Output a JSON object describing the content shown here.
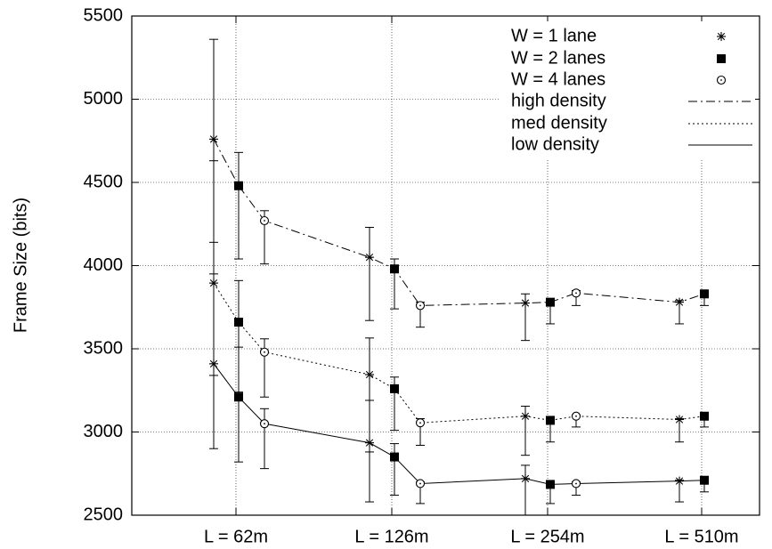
{
  "chart_data": {
    "type": "line",
    "title": "",
    "xlabel": "",
    "ylabel": "Frame Size (bits)",
    "ylim": [
      2500,
      5500
    ],
    "yticks": [
      "2500",
      "3000",
      "3500",
      "4000",
      "4500",
      "5000",
      "5500"
    ],
    "categories": [
      "L = 62m",
      "L = 126m",
      "L = 254m",
      "L = 510m"
    ],
    "grid": true,
    "legend_position": "top-right",
    "marker_legend": [
      {
        "label": "W = 1 lane",
        "marker": "star"
      },
      {
        "label": "W = 2 lanes",
        "marker": "square"
      },
      {
        "label": "W = 4 lanes",
        "marker": "circle"
      }
    ],
    "line_legend": [
      {
        "label": "high density",
        "style": "dash-dot"
      },
      {
        "label": "med density",
        "style": "dotted"
      },
      {
        "label": "low density",
        "style": "solid"
      }
    ],
    "series": [
      {
        "density": "high density",
        "points": [
          {
            "category": 0,
            "lanes": 1,
            "y": 4760,
            "err_low": 4140,
            "err_high": 5360
          },
          {
            "category": 0,
            "lanes": 2,
            "y": 4480,
            "err_low": 4040,
            "err_high": 4680
          },
          {
            "category": 0,
            "lanes": 4,
            "y": 4270,
            "err_low": 4010,
            "err_high": 4330
          },
          {
            "category": 1,
            "lanes": 1,
            "y": 4050,
            "err_low": 3670,
            "err_high": 4230
          },
          {
            "category": 1,
            "lanes": 2,
            "y": 3980,
            "err_low": 3740,
            "err_high": 4040
          },
          {
            "category": 1,
            "lanes": 4,
            "y": 3760,
            "err_low": 3630,
            "err_high": 3780
          },
          {
            "category": 2,
            "lanes": 1,
            "y": 3775,
            "err_low": 3550,
            "err_high": 3830
          },
          {
            "category": 2,
            "lanes": 2,
            "y": 3780,
            "err_low": 3650,
            "err_high": 3790
          },
          {
            "category": 2,
            "lanes": 4,
            "y": 3835,
            "err_low": 3760,
            "err_high": 3850
          },
          {
            "category": 3,
            "lanes": 1,
            "y": 3780,
            "err_low": 3650,
            "err_high": 3790
          },
          {
            "category": 3,
            "lanes": 2,
            "y": 3830,
            "err_low": 3760,
            "err_high": 3850
          }
        ]
      },
      {
        "density": "med density",
        "points": [
          {
            "category": 0,
            "lanes": 1,
            "y": 3895,
            "err_low": 3340,
            "err_high": 4630
          },
          {
            "category": 0,
            "lanes": 2,
            "y": 3660,
            "err_low": 3240,
            "err_high": 3910
          },
          {
            "category": 0,
            "lanes": 4,
            "y": 3480,
            "err_low": 3210,
            "err_high": 3560
          },
          {
            "category": 1,
            "lanes": 1,
            "y": 3345,
            "err_low": 2880,
            "err_high": 3565
          },
          {
            "category": 1,
            "lanes": 2,
            "y": 3260,
            "err_low": 3010,
            "err_high": 3330
          },
          {
            "category": 1,
            "lanes": 4,
            "y": 3055,
            "err_low": 2920,
            "err_high": 3080
          },
          {
            "category": 2,
            "lanes": 1,
            "y": 3095,
            "err_low": 2860,
            "err_high": 3155
          },
          {
            "category": 2,
            "lanes": 2,
            "y": 3070,
            "err_low": 2940,
            "err_high": 3080
          },
          {
            "category": 2,
            "lanes": 4,
            "y": 3095,
            "err_low": 3030,
            "err_high": 3100
          },
          {
            "category": 3,
            "lanes": 1,
            "y": 3075,
            "err_low": 2940,
            "err_high": 3080
          },
          {
            "category": 3,
            "lanes": 2,
            "y": 3095,
            "err_low": 3030,
            "err_high": 3100
          }
        ]
      },
      {
        "density": "low density",
        "points": [
          {
            "category": 0,
            "lanes": 1,
            "y": 3410,
            "err_low": 2900,
            "err_high": 3950
          },
          {
            "category": 0,
            "lanes": 2,
            "y": 3210,
            "err_low": 2820,
            "err_high": 3510
          },
          {
            "category": 0,
            "lanes": 4,
            "y": 3050,
            "err_low": 2780,
            "err_high": 3140
          },
          {
            "category": 1,
            "lanes": 1,
            "y": 2935,
            "err_low": 2580,
            "err_high": 3190
          },
          {
            "category": 1,
            "lanes": 2,
            "y": 2850,
            "err_low": 2620,
            "err_high": 2930
          },
          {
            "category": 1,
            "lanes": 4,
            "y": 2690,
            "err_low": 2570,
            "err_high": 2700
          },
          {
            "category": 2,
            "lanes": 1,
            "y": 2720,
            "err_low": 2500,
            "err_high": 2800
          },
          {
            "category": 2,
            "lanes": 2,
            "y": 2685,
            "err_low": 2570,
            "err_high": 2700
          },
          {
            "category": 2,
            "lanes": 4,
            "y": 2690,
            "err_low": 2620,
            "err_high": 2700
          },
          {
            "category": 3,
            "lanes": 1,
            "y": 2705,
            "err_low": 2580,
            "err_high": 2710
          },
          {
            "category": 3,
            "lanes": 2,
            "y": 2710,
            "err_low": 2640,
            "err_high": 2720
          }
        ]
      }
    ]
  }
}
